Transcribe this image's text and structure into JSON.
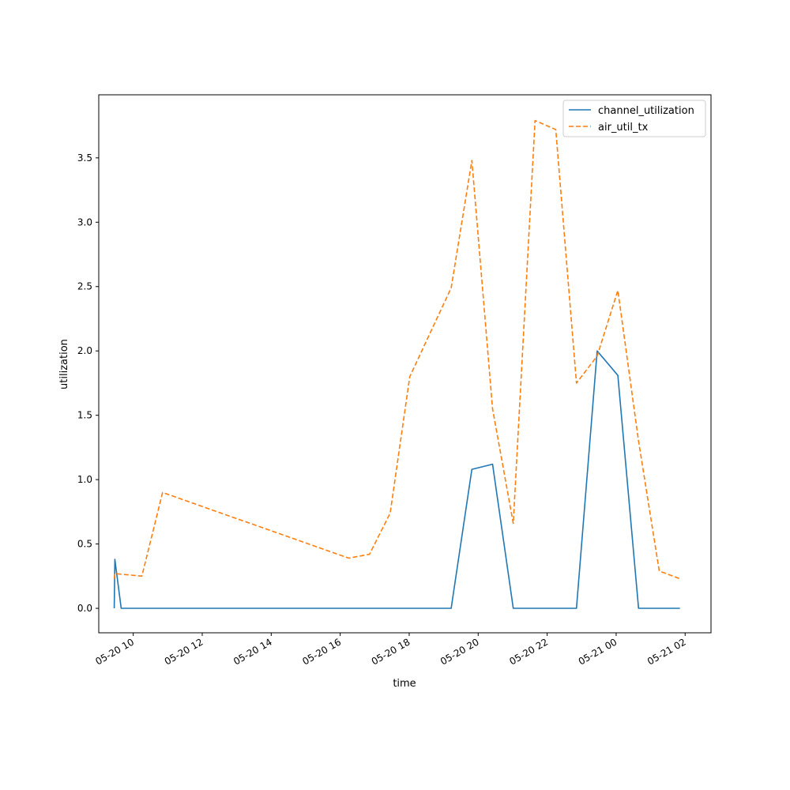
{
  "chart_data": {
    "type": "line",
    "xlabel": "time",
    "ylabel": "utilization",
    "x_ticks": [
      "05-20 10",
      "05-20 12",
      "05-20 14",
      "05-20 16",
      "05-20 18",
      "05-20 20",
      "05-20 22",
      "05-21 00",
      "05-21 02"
    ],
    "y_ticks": [
      "0.0",
      "0.5",
      "1.0",
      "1.5",
      "2.0",
      "2.5",
      "3.0",
      "3.5"
    ],
    "xlim": [
      "2024-05-20T09:00",
      "2024-05-21T02:45"
    ],
    "ylim": [
      -0.19,
      3.99
    ],
    "legend_position": "top-right",
    "grid": false,
    "series": [
      {
        "name": "channel_utilization",
        "color": "#1f77b4",
        "style": "solid",
        "points": [
          [
            "2024-05-20T09:27",
            0.0
          ],
          [
            "2024-05-20T09:28",
            0.38
          ],
          [
            "2024-05-20T09:39",
            0.0
          ],
          [
            "2024-05-20T19:13",
            0.0
          ],
          [
            "2024-05-20T19:49",
            1.08
          ],
          [
            "2024-05-20T20:25",
            1.12
          ],
          [
            "2024-05-20T21:01",
            0.0
          ],
          [
            "2024-05-20T22:51",
            0.0
          ],
          [
            "2024-05-20T23:27",
            2.0
          ],
          [
            "2024-05-21T00:03",
            1.81
          ],
          [
            "2024-05-21T00:39",
            0.0
          ],
          [
            "2024-05-21T01:51",
            0.0
          ]
        ]
      },
      {
        "name": "air_util_tx",
        "color": "#ff7f0e",
        "style": "dashed",
        "points": [
          [
            "2024-05-20T09:27",
            0.23
          ],
          [
            "2024-05-20T09:28",
            0.27
          ],
          [
            "2024-05-20T10:15",
            0.25
          ],
          [
            "2024-05-20T10:51",
            0.9
          ],
          [
            "2024-05-20T16:15",
            0.39
          ],
          [
            "2024-05-20T16:51",
            0.42
          ],
          [
            "2024-05-20T17:27",
            0.74
          ],
          [
            "2024-05-20T18:01",
            1.8
          ],
          [
            "2024-05-20T19:13",
            2.49
          ],
          [
            "2024-05-20T19:49",
            3.48
          ],
          [
            "2024-05-20T20:25",
            1.55
          ],
          [
            "2024-05-20T21:01",
            0.66
          ],
          [
            "2024-05-20T21:39",
            3.79
          ],
          [
            "2024-05-20T22:15",
            3.72
          ],
          [
            "2024-05-20T22:51",
            1.75
          ],
          [
            "2024-05-20T23:27",
            1.96
          ],
          [
            "2024-05-21T00:03",
            2.47
          ],
          [
            "2024-05-21T00:39",
            1.3
          ],
          [
            "2024-05-21T01:15",
            0.29
          ],
          [
            "2024-05-21T01:51",
            0.23
          ]
        ]
      }
    ]
  }
}
